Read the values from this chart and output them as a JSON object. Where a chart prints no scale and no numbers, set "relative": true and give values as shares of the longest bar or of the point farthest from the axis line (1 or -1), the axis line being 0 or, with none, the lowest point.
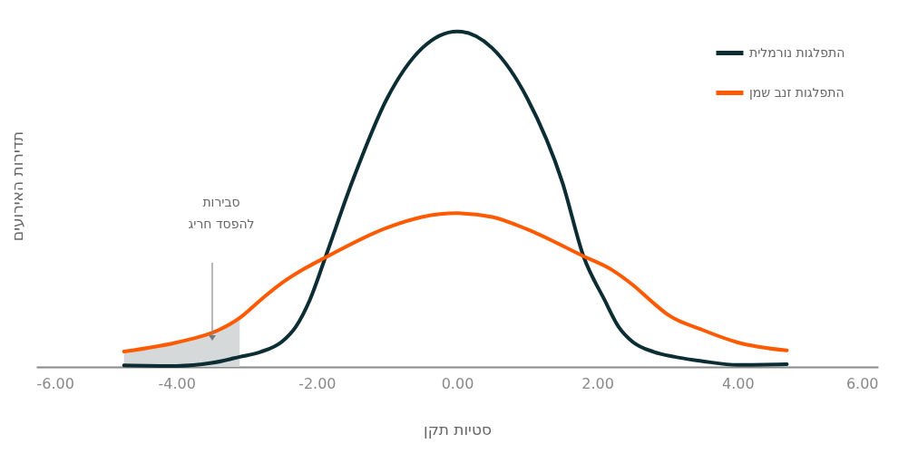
{
  "chart_data": {
    "type": "line",
    "relative": true,
    "xlabel": "סטיות תקן",
    "ylabel": "תדירות האירועים",
    "xlim": [
      -6,
      6
    ],
    "xticks": [
      {
        "value": -6,
        "label": "-6.00"
      },
      {
        "value": -4,
        "label": "-4.00"
      },
      {
        "value": -2,
        "label": "-2.00"
      },
      {
        "value": 0,
        "label": "0.00"
      },
      {
        "value": 2,
        "label": "2.00"
      },
      {
        "value": 4,
        "label": "4.00"
      },
      {
        "value": 6,
        "label": "6.00"
      }
    ],
    "grid": false,
    "legend": "top right",
    "marker": "none",
    "line_style": "solid",
    "series": [
      {
        "type": "area",
        "color": "#d5d9d9",
        "x": [
          -4.75,
          -4,
          -3.4,
          -3.1
        ],
        "values": [
          0.046,
          0.073,
          0.11,
          0.146
        ]
      },
      {
        "name": "התפלגות נורמלית",
        "color": "#0b2d33",
        "x": [
          -4.75,
          -4,
          -3.5,
          -3.1,
          -2.8,
          -2.5,
          -2.3,
          -2.1,
          -1.88,
          -1.5,
          -1,
          -0.5,
          0,
          0.5,
          1,
          1.5,
          1.8,
          2.1,
          2.3,
          2.5,
          2.8,
          3.1,
          3.5,
          4,
          4.7
        ],
        "values": [
          0.005,
          0.003,
          0.012,
          0.03,
          0.045,
          0.075,
          0.12,
          0.2,
          0.326,
          0.55,
          0.8,
          0.95,
          1,
          0.95,
          0.8,
          0.55,
          0.33,
          0.2,
          0.12,
          0.075,
          0.045,
          0.03,
          0.017,
          0.006,
          0.008
        ]
      },
      {
        "name": "התפלגות זנב שמן",
        "color": "#ff5a00",
        "x": [
          -4.75,
          -4,
          -3.4,
          -3.1,
          -2.8,
          -2.5,
          -2.2,
          -1.88,
          -1,
          -0.5,
          0,
          0.5,
          1,
          1.8,
          2.2,
          2.5,
          2.8,
          3,
          3.5,
          4,
          4.7
        ],
        "values": [
          0.046,
          0.073,
          0.11,
          0.146,
          0.2,
          0.25,
          0.29,
          0.326,
          0.415,
          0.447,
          0.458,
          0.447,
          0.41,
          0.33,
          0.29,
          0.245,
          0.19,
          0.156,
          0.11,
          0.073,
          0.049
        ]
      }
    ],
    "annotations": [
      "סבירות\nלהפסד חריג"
    ]
  }
}
